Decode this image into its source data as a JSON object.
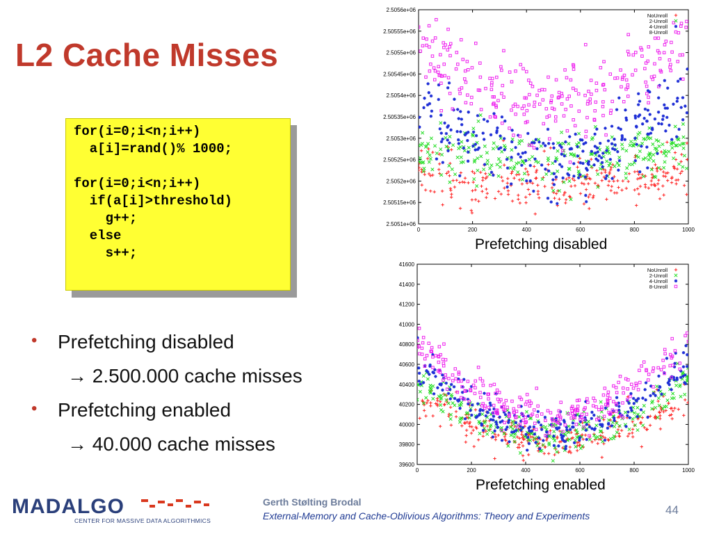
{
  "slide": {
    "title": "L2 Cache Misses",
    "code_lines": [
      "for(i=0;i<n;i++)",
      "  a[i]=rand()% 1000;",
      "",
      "for(i=0;i<n;i++)",
      "  if(a[i]>threshold)",
      "    g++;",
      "  else",
      "    s++;"
    ],
    "bullets": [
      {
        "text": "Prefetching disabled",
        "level": 1,
        "marker": "•"
      },
      {
        "text": "→ 2.500.000 cache misses",
        "level": 2,
        "marker": ""
      },
      {
        "text": "Prefetching enabled",
        "level": 1,
        "marker": "•"
      },
      {
        "text": "→ 40.000 cache misses",
        "level": 2,
        "marker": ""
      }
    ],
    "captions": [
      "Prefetching disabled",
      "Prefetching enabled"
    ]
  },
  "footer": {
    "logo_text": "MADALGO",
    "logo_subtitle": "CENTER FOR MASSIVE DATA ALGORITHMICS",
    "author": "Gerth Stølting Brodal",
    "course": "External-Memory and Cache-Oblivious Algorithms: Theory and Experiments",
    "page_number": "44"
  },
  "colors": {
    "title": "#c0392b",
    "code_background": "#ffff33",
    "noUnroll": "#ff2020",
    "unroll2": "#22dd22",
    "unroll4": "#1f2fd6",
    "unroll8": "#ee22ee"
  },
  "chart_data": [
    {
      "type": "scatter",
      "title": "",
      "xlabel": "",
      "ylabel": "",
      "xlim": [
        0,
        1000
      ],
      "ylim": [
        2505100,
        2505600
      ],
      "x_ticks": [
        0,
        200,
        400,
        600,
        800,
        1000
      ],
      "y_ticks": [
        "2.5051e+06",
        "2.50515e+06",
        "2.5052e+06",
        "2.50525e+06",
        "2.5053e+06",
        "2.50535e+06",
        "2.5054e+06",
        "2.50545e+06",
        "2.5055e+06",
        "2.50555e+06",
        "2.5056e+06"
      ],
      "legend_placement": "top-right",
      "legend": [
        "NoUnroll",
        "2-Unroll",
        "4-Unroll",
        "8-Unroll"
      ],
      "series": [
        {
          "name": "NoUnroll",
          "marker": "+",
          "profile": {
            "edge": 2505228,
            "middle": 2505190,
            "spread": 30
          }
        },
        {
          "name": "2-Unroll",
          "marker": "x",
          "profile": {
            "edge": 2505282,
            "middle": 2505250,
            "spread": 30
          }
        },
        {
          "name": "4-Unroll",
          "marker": "*",
          "profile": {
            "edge": 2505400,
            "middle": 2505250,
            "spread": 45
          }
        },
        {
          "name": "8-Unroll",
          "marker": "square",
          "profile": {
            "edge": 2505520,
            "middle": 2505380,
            "spread": 45
          }
        }
      ],
      "points_per_series": 260
    },
    {
      "type": "scatter",
      "title": "",
      "xlabel": "",
      "ylabel": "",
      "xlim": [
        0,
        1000
      ],
      "ylim": [
        39600,
        41600
      ],
      "x_ticks": [
        0,
        200,
        400,
        600,
        800,
        1000
      ],
      "y_ticks": [
        "39600",
        "39800",
        "40000",
        "40200",
        "40400",
        "40600",
        "40800",
        "41000",
        "41200",
        "41400",
        "41600"
      ],
      "legend_placement": "top-right",
      "legend": [
        "NoUnroll",
        "2-Unroll",
        "4-Unroll",
        "8-Unroll"
      ],
      "series": [
        {
          "name": "NoUnroll",
          "marker": "+",
          "profile": {
            "edge": 40300,
            "middle": 39820,
            "spread": 90
          }
        },
        {
          "name": "2-Unroll",
          "marker": "x",
          "profile": {
            "edge": 40450,
            "middle": 39900,
            "spread": 90
          }
        },
        {
          "name": "4-Unroll",
          "marker": "*",
          "profile": {
            "edge": 40650,
            "middle": 39950,
            "spread": 100
          }
        },
        {
          "name": "8-Unroll",
          "marker": "square",
          "profile": {
            "edge": 40850,
            "middle": 40070,
            "spread": 100
          }
        }
      ],
      "points_per_series": 260
    }
  ]
}
